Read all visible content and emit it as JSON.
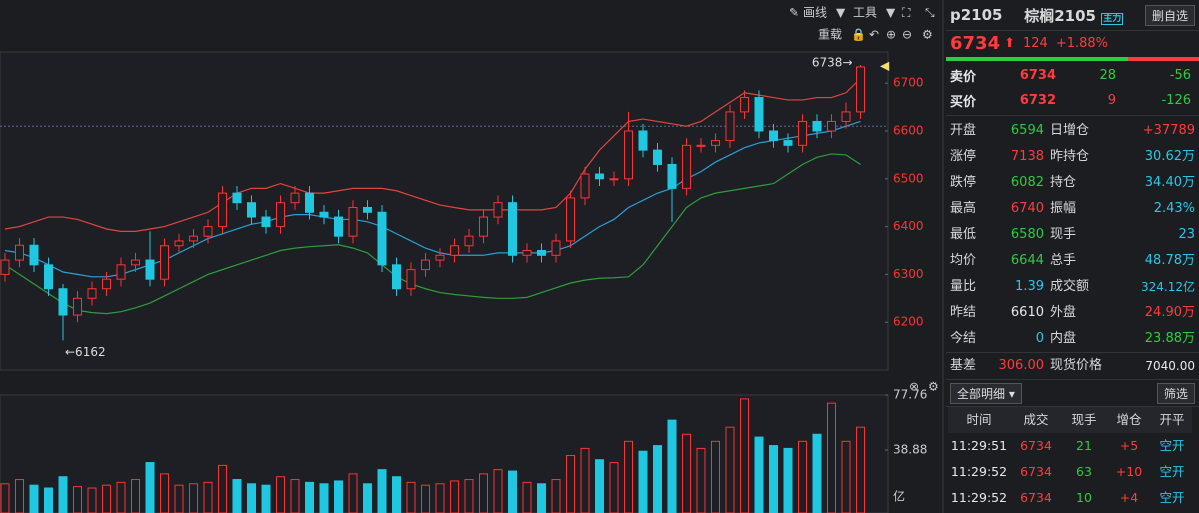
{
  "toolbar": {
    "draw": "画线",
    "tools": "工具",
    "reload": "重载"
  },
  "chart_data": [
    {
      "type": "candlestick",
      "up_color": "#ff3232",
      "down_color": "#1fc8e0",
      "ylim": [
        6100,
        6759
      ],
      "yticks": [
        6200,
        6300,
        6400,
        6500,
        6600,
        6700
      ],
      "annotations": {
        "high": "6738→",
        "low": "←6162"
      },
      "ohlc": [
        [
          6300,
          6345,
          6285,
          6330
        ],
        [
          6330,
          6376,
          6315,
          6361
        ],
        [
          6361,
          6376,
          6305,
          6320
        ],
        [
          6320,
          6335,
          6255,
          6270
        ],
        [
          6270,
          6280,
          6162,
          6215
        ],
        [
          6215,
          6265,
          6200,
          6250
        ],
        [
          6250,
          6285,
          6235,
          6270
        ],
        [
          6270,
          6305,
          6255,
          6290
        ],
        [
          6290,
          6335,
          6275,
          6320
        ],
        [
          6320,
          6345,
          6305,
          6330
        ],
        [
          6330,
          6390,
          6275,
          6290
        ],
        [
          6290,
          6375,
          6275,
          6360
        ],
        [
          6360,
          6385,
          6345,
          6370
        ],
        [
          6370,
          6395,
          6355,
          6380
        ],
        [
          6380,
          6415,
          6365,
          6400
        ],
        [
          6400,
          6485,
          6385,
          6470
        ],
        [
          6470,
          6485,
          6435,
          6450
        ],
        [
          6450,
          6465,
          6405,
          6420
        ],
        [
          6420,
          6435,
          6385,
          6400
        ],
        [
          6400,
          6465,
          6385,
          6450
        ],
        [
          6450,
          6485,
          6435,
          6470
        ],
        [
          6470,
          6485,
          6415,
          6430
        ],
        [
          6430,
          6445,
          6405,
          6420
        ],
        [
          6420,
          6435,
          6365,
          6380
        ],
        [
          6380,
          6455,
          6365,
          6440
        ],
        [
          6440,
          6455,
          6415,
          6430
        ],
        [
          6430,
          6445,
          6305,
          6320
        ],
        [
          6320,
          6335,
          6255,
          6270
        ],
        [
          6270,
          6325,
          6255,
          6310
        ],
        [
          6310,
          6345,
          6295,
          6330
        ],
        [
          6330,
          6355,
          6315,
          6340
        ],
        [
          6340,
          6375,
          6325,
          6360
        ],
        [
          6360,
          6395,
          6345,
          6380
        ],
        [
          6380,
          6435,
          6365,
          6420
        ],
        [
          6420,
          6465,
          6405,
          6450
        ],
        [
          6450,
          6465,
          6325,
          6340
        ],
        [
          6340,
          6365,
          6325,
          6350
        ],
        [
          6350,
          6365,
          6325,
          6340
        ],
        [
          6340,
          6385,
          6325,
          6370
        ],
        [
          6370,
          6475,
          6355,
          6460
        ],
        [
          6460,
          6525,
          6445,
          6510
        ],
        [
          6510,
          6525,
          6485,
          6500
        ],
        [
          6500,
          6515,
          6485,
          6500
        ],
        [
          6500,
          6640,
          6485,
          6600
        ],
        [
          6600,
          6615,
          6545,
          6560
        ],
        [
          6560,
          6575,
          6515,
          6530
        ],
        [
          6530,
          6545,
          6410,
          6480
        ],
        [
          6480,
          6585,
          6465,
          6570
        ],
        [
          6570,
          6585,
          6555,
          6570
        ],
        [
          6570,
          6595,
          6555,
          6580
        ],
        [
          6580,
          6655,
          6565,
          6640
        ],
        [
          6640,
          6685,
          6625,
          6670
        ],
        [
          6670,
          6685,
          6585,
          6600
        ],
        [
          6600,
          6615,
          6565,
          6580
        ],
        [
          6580,
          6595,
          6555,
          6570
        ],
        [
          6570,
          6635,
          6555,
          6620
        ],
        [
          6620,
          6635,
          6585,
          6600
        ],
        [
          6600,
          6635,
          6585,
          6620
        ],
        [
          6620,
          6660,
          6605,
          6640
        ],
        [
          6640,
          6738,
          6625,
          6734
        ]
      ],
      "overlays": [
        {
          "color": "#e0463c",
          "values": [
            6395,
            6400,
            6410,
            6420,
            6420,
            6415,
            6405,
            6395,
            6390,
            6390,
            6395,
            6400,
            6410,
            6420,
            6430,
            6450,
            6470,
            6480,
            6480,
            6490,
            6480,
            6470,
            6470,
            6475,
            6480,
            6480,
            6480,
            6475,
            6465,
            6455,
            6445,
            6440,
            6435,
            6435,
            6435,
            6435,
            6435,
            6435,
            6440,
            6470,
            6520,
            6560,
            6590,
            6620,
            6625,
            6620,
            6615,
            6610,
            6620,
            6640,
            6660,
            6680,
            6675,
            6670,
            6665,
            6665,
            6670,
            6670,
            6680,
            6710
          ]
        },
        {
          "color": "#2a9fd8",
          "values": [
            6350,
            6345,
            6335,
            6320,
            6305,
            6300,
            6295,
            6295,
            6300,
            6310,
            6320,
            6330,
            6345,
            6360,
            6375,
            6385,
            6395,
            6405,
            6410,
            6420,
            6425,
            6425,
            6420,
            6415,
            6415,
            6410,
            6400,
            6385,
            6370,
            6355,
            6345,
            6340,
            6340,
            6340,
            6345,
            6345,
            6345,
            6345,
            6350,
            6360,
            6380,
            6400,
            6415,
            6440,
            6455,
            6470,
            6480,
            6500,
            6515,
            6535,
            6550,
            6565,
            6575,
            6580,
            6585,
            6590,
            6595,
            6600,
            6610,
            6620
          ]
        },
        {
          "color": "#2e9e3a",
          "values": [
            6320,
            6300,
            6280,
            6260,
            6240,
            6225,
            6220,
            6218,
            6222,
            6230,
            6240,
            6255,
            6270,
            6285,
            6300,
            6310,
            6320,
            6330,
            6340,
            6350,
            6355,
            6358,
            6360,
            6362,
            6355,
            6345,
            6320,
            6295,
            6280,
            6270,
            6262,
            6258,
            6255,
            6252,
            6250,
            6250,
            6252,
            6262,
            6272,
            6282,
            6288,
            6292,
            6293,
            6295,
            6320,
            6360,
            6400,
            6440,
            6460,
            6470,
            6475,
            6480,
            6485,
            6490,
            6510,
            6530,
            6545,
            6552,
            6550,
            6530
          ]
        }
      ]
    },
    {
      "type": "bar",
      "ylim": [
        0,
        77.76
      ],
      "yticks": [
        77.76,
        38.88
      ],
      "unit": "亿",
      "values": [
        15,
        18,
        14,
        12,
        20,
        13,
        12,
        14,
        16,
        18,
        30,
        22,
        14,
        15,
        16,
        28,
        18,
        15,
        14,
        20,
        18,
        16,
        15,
        17,
        22,
        15,
        25,
        20,
        16,
        14,
        15,
        17,
        18,
        22,
        25,
        24,
        16,
        15,
        18,
        35,
        40,
        32,
        30,
        45,
        38,
        42,
        60,
        50,
        40,
        45,
        55,
        75,
        48,
        42,
        40,
        45,
        50,
        72,
        45,
        55
      ]
    }
  ],
  "quote": {
    "code": "p2105",
    "name": "棕榈2105",
    "badge": "主力",
    "button": "删自选",
    "price": "6734",
    "change": "124",
    "change_pct": "+1.88%"
  },
  "book": [
    [
      "卖价",
      "6734",
      "28",
      "-56"
    ],
    [
      "买价",
      "6732",
      "9",
      "-126"
    ]
  ],
  "stats": [
    [
      "开盘",
      "6594",
      "日增仓",
      "+37789"
    ],
    [
      "涨停",
      "7138",
      "昨持仓",
      "30.62万"
    ],
    [
      "跌停",
      "6082",
      "持仓",
      "34.40万"
    ],
    [
      "最高",
      "6740",
      "振幅",
      "2.43%"
    ],
    [
      "最低",
      "6580",
      "现手",
      "23"
    ],
    [
      "均价",
      "6644",
      "总手",
      "48.78万"
    ],
    [
      "量比",
      "1.39",
      "成交额",
      "324.12亿"
    ],
    [
      "昨结",
      "6610",
      "外盘",
      "24.90万"
    ],
    [
      "今结",
      "0",
      "内盘",
      "23.88万"
    ]
  ],
  "basis": [
    "基差",
    "306.00",
    "现货价格",
    "7040.00"
  ],
  "detail": {
    "select": "全部明细",
    "filter": "筛选"
  },
  "trades": {
    "headers": [
      "时间",
      "成交",
      "现手",
      "增仓",
      "开平"
    ],
    "rows": [
      [
        "11:29:51",
        "6734",
        "21",
        "+5",
        "空开"
      ],
      [
        "11:29:52",
        "6734",
        "63",
        "+10",
        "空开"
      ],
      [
        "11:29:52",
        "6734",
        "10",
        "+4",
        "空开"
      ]
    ]
  }
}
